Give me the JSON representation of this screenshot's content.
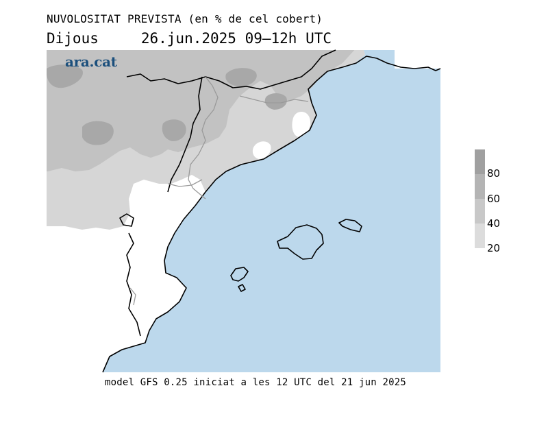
{
  "title": "NUVOLOSITAT PREVISTA (en % de cel cobert)",
  "day": "Dijous",
  "date_range": "26.jun.2025 09–12h UTC",
  "logo_text": "ara.cat",
  "footer": "model GFS 0.25 iniciat a les 12 UTC del 21 jun 2025",
  "legend": {
    "labels": [
      "80",
      "60",
      "40",
      "20"
    ],
    "colors": [
      "#a0a0a0",
      "#b4b4b4",
      "#c8c8c8",
      "#dcdcdc"
    ]
  },
  "colors": {
    "sea": "#bcd8ec",
    "land_clear": "#ffffff",
    "cloud_light": "#d6d6d6",
    "cloud_medium": "#bfbfbf",
    "cloud_dark": "#a6a6a6"
  }
}
